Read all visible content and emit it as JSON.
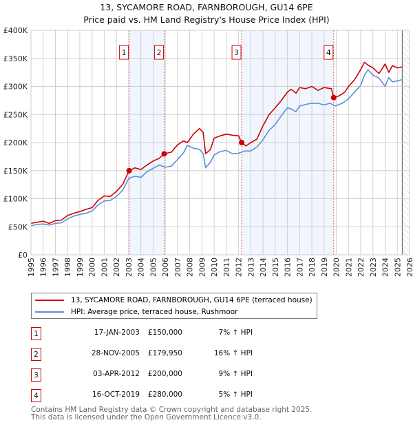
{
  "title_line1": "13, SYCAMORE ROAD, FARNBOROUGH, GU14 6PE",
  "title_line2": "Price paid vs. HM Land Registry's House Price Index (HPI)",
  "chart_data": {
    "type": "line",
    "title": "13, SYCAMORE ROAD, FARNBOROUGH, GU14 6PE — Price paid vs. HM Land Registry's House Price Index (HPI)",
    "xlim": [
      1995,
      2026
    ],
    "ylim": [
      0,
      400000
    ],
    "x_ticks": [
      "1995",
      "1996",
      "1997",
      "1998",
      "1999",
      "2000",
      "2001",
      "2002",
      "2003",
      "2004",
      "2005",
      "2006",
      "2007",
      "2008",
      "2009",
      "2010",
      "2011",
      "2012",
      "2013",
      "2014",
      "2015",
      "2016",
      "2017",
      "2018",
      "2019",
      "2020",
      "2021",
      "2022",
      "2023",
      "2024",
      "2025",
      "2026"
    ],
    "y_ticks": [
      {
        "value": 0,
        "label": "£0"
      },
      {
        "value": 50000,
        "label": "£50K"
      },
      {
        "value": 100000,
        "label": "£100K"
      },
      {
        "value": 150000,
        "label": "£150K"
      },
      {
        "value": 200000,
        "label": "£200K"
      },
      {
        "value": 250000,
        "label": "£250K"
      },
      {
        "value": 300000,
        "label": "£300K"
      },
      {
        "value": 350000,
        "label": "£350K"
      },
      {
        "value": 400000,
        "label": "£400K"
      }
    ],
    "grid": true,
    "forecast_hatch_from": 2025.4,
    "series": [
      {
        "name": "13, SYCAMORE ROAD, FARNBOROUGH, GU14 6PE (terraced house)",
        "color": "#cc0000",
        "x": [
          1995,
          1995.5,
          1996,
          1996.5,
          1997,
          1997.5,
          1998,
          1998.5,
          1999,
          1999.5,
          2000,
          2000.5,
          2001,
          2001.5,
          2002,
          2002.5,
          2003.04,
          2003.5,
          2004,
          2004.5,
          2005,
          2005.5,
          2005.91,
          2006.5,
          2007,
          2007.5,
          2007.8,
          2008.3,
          2008.8,
          2009.1,
          2009.3,
          2009.7,
          2010,
          2010.5,
          2011,
          2011.5,
          2012,
          2012.25,
          2012.6,
          2013,
          2013.5,
          2014,
          2014.5,
          2015,
          2015.5,
          2016,
          2016.3,
          2016.7,
          2017,
          2017.5,
          2018,
          2018.5,
          2019,
          2019.6,
          2019.79,
          2020.2,
          2020.7,
          2021,
          2021.5,
          2022,
          2022.3,
          2022.6,
          2023,
          2023.5,
          2024,
          2024.3,
          2024.6,
          2025,
          2025.4
        ],
        "values": [
          56000,
          58000,
          60000,
          56000,
          61000,
          62000,
          70000,
          74000,
          77000,
          81000,
          84000,
          97000,
          105000,
          104000,
          113000,
          125000,
          150000,
          155000,
          152000,
          160000,
          167000,
          172000,
          179950,
          183000,
          196000,
          203000,
          200000,
          215000,
          225000,
          218000,
          180000,
          188000,
          208000,
          212000,
          215000,
          213000,
          212000,
          200000,
          194000,
          200000,
          206000,
          230000,
          250000,
          262000,
          275000,
          290000,
          295000,
          288000,
          298000,
          296000,
          300000,
          293000,
          298000,
          296000,
          280000,
          283000,
          290000,
          300000,
          312000,
          330000,
          343000,
          338000,
          333000,
          323000,
          340000,
          325000,
          337000,
          333000,
          335000
        ]
      },
      {
        "name": "HPI: Average price, terraced house, Rushmoor",
        "color": "#5b8fd4",
        "x": [
          1995,
          1995.5,
          1996,
          1996.5,
          1997,
          1997.5,
          1998,
          1998.5,
          1999,
          1999.5,
          2000,
          2000.5,
          2001,
          2001.5,
          2002,
          2002.5,
          2003,
          2003.5,
          2004,
          2004.5,
          2005,
          2005.5,
          2006,
          2006.5,
          2007,
          2007.5,
          2007.8,
          2008.3,
          2008.8,
          2009.1,
          2009.3,
          2009.7,
          2010,
          2010.5,
          2011,
          2011.5,
          2012,
          2012.5,
          2013,
          2013.5,
          2014,
          2014.5,
          2015,
          2015.5,
          2016,
          2016.3,
          2016.7,
          2017,
          2017.5,
          2018,
          2018.5,
          2019,
          2019.5,
          2019.9,
          2020.5,
          2021,
          2021.5,
          2022,
          2022.3,
          2022.6,
          2023,
          2023.5,
          2024,
          2024.3,
          2024.6,
          2025,
          2025.4
        ],
        "values": [
          52000,
          54000,
          55000,
          53000,
          56000,
          57000,
          64000,
          69000,
          72000,
          74000,
          78000,
          89000,
          96000,
          97000,
          104000,
          115000,
          136000,
          140000,
          138000,
          148000,
          154000,
          160000,
          156000,
          158000,
          170000,
          182000,
          195000,
          190000,
          188000,
          180000,
          155000,
          165000,
          178000,
          184000,
          186000,
          180000,
          181000,
          185000,
          185000,
          192000,
          205000,
          222000,
          232000,
          248000,
          262000,
          260000,
          255000,
          265000,
          268000,
          270000,
          270000,
          267000,
          270000,
          265000,
          270000,
          278000,
          290000,
          302000,
          320000,
          330000,
          320000,
          315000,
          300000,
          316000,
          308000,
          310000,
          312000
        ]
      }
    ],
    "annotations": [
      {
        "label": "1",
        "x": 2003.04,
        "y": 150000
      },
      {
        "label": "2",
        "x": 2005.91,
        "y": 179950
      },
      {
        "label": "3",
        "x": 2012.25,
        "y": 200000
      },
      {
        "label": "4",
        "x": 2019.79,
        "y": 280000
      }
    ],
    "shaded_ranges": [
      [
        2003.04,
        2005.91
      ],
      [
        2012.25,
        2019.79
      ]
    ]
  },
  "legend": {
    "property": "13, SYCAMORE ROAD, FARNBOROUGH, GU14 6PE (terraced house)",
    "hpi": "HPI: Average price, terraced house, Rushmoor",
    "property_color": "#cc0000",
    "hpi_color": "#5b8fd4"
  },
  "sales": [
    {
      "num": "1",
      "date": "17-JAN-2003",
      "price": "£150,000",
      "hpi": "7% ↑ HPI"
    },
    {
      "num": "2",
      "date": "28-NOV-2005",
      "price": "£179,950",
      "hpi": "16% ↑ HPI"
    },
    {
      "num": "3",
      "date": "03-APR-2012",
      "price": "£200,000",
      "hpi": "9% ↑ HPI"
    },
    {
      "num": "4",
      "date": "16-OCT-2019",
      "price": "£280,000",
      "hpi": "5% ↑ HPI"
    }
  ],
  "footer_line1": "Contains HM Land Registry data © Crown copyright and database right 2025.",
  "footer_line2": "This data is licensed under the Open Government Licence v3.0."
}
